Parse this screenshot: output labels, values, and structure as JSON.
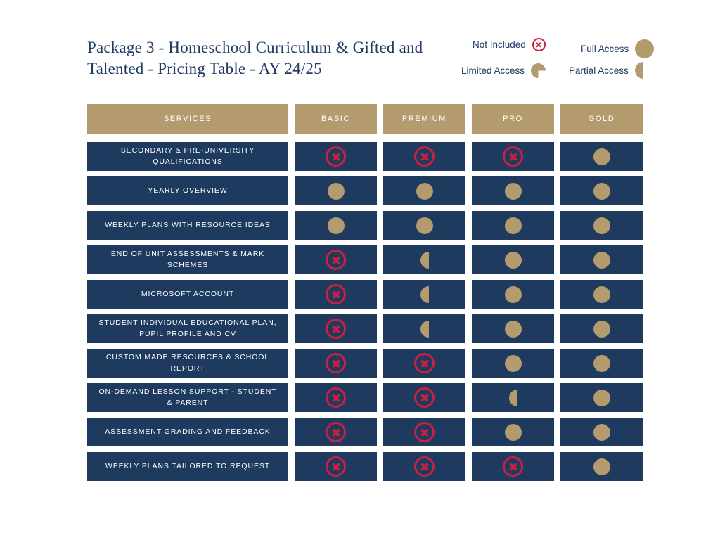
{
  "page": {
    "title": "Package 3 - Homeschool Curriculum & Gifted and Talented - Pricing Table - AY 24/25"
  },
  "legend": {
    "not_included": "Not Included",
    "full_access": "Full Access",
    "limited_access": "Limited Access",
    "partial_access": "Partial Access"
  },
  "colors": {
    "navy": "#1e3a5f",
    "tan": "#b49b6e",
    "red": "#c9203f",
    "bg": "#ffffff"
  },
  "chart_data": {
    "type": "table",
    "columns": [
      "SERVICES",
      "BASIC",
      "PREMIUM",
      "PRO",
      "GOLD"
    ],
    "cell_symbols": {
      "x": "Not Included",
      "half": "Partial / Limited Access",
      "full": "Full Access"
    },
    "rows": [
      {
        "service": "SECONDARY & PRE-UNIVERSITY QUALIFICATIONS",
        "values": [
          "x",
          "x",
          "x",
          "full"
        ]
      },
      {
        "service": "YEARLY OVERVIEW",
        "values": [
          "full",
          "full",
          "full",
          "full"
        ]
      },
      {
        "service": "WEEKLY PLANS WITH RESOURCE IDEAS",
        "values": [
          "full",
          "full",
          "full",
          "full"
        ]
      },
      {
        "service": "END OF UNIT ASSESSMENTS & MARK SCHEMES",
        "values": [
          "x",
          "half",
          "full",
          "full"
        ]
      },
      {
        "service": "MICROSOFT ACCOUNT",
        "values": [
          "x",
          "half",
          "full",
          "full"
        ]
      },
      {
        "service": "STUDENT INDIVIDUAL EDUCATIONAL PLAN, PUPIL PROFILE AND CV",
        "values": [
          "x",
          "half",
          "full",
          "full"
        ]
      },
      {
        "service": "CUSTOM MADE RESOURCES & SCHOOL REPORT",
        "values": [
          "x",
          "x",
          "full",
          "full"
        ]
      },
      {
        "service": "ON-DEMAND LESSON SUPPORT - STUDENT & PARENT",
        "values": [
          "x",
          "x",
          "half",
          "full"
        ]
      },
      {
        "service": "ASSESSMENT GRADING AND FEEDBACK",
        "values": [
          "x",
          "x",
          "full",
          "full"
        ]
      },
      {
        "service": "WEEKLY PLANS TAILORED TO REQUEST",
        "values": [
          "x",
          "x",
          "x",
          "full"
        ]
      }
    ]
  }
}
